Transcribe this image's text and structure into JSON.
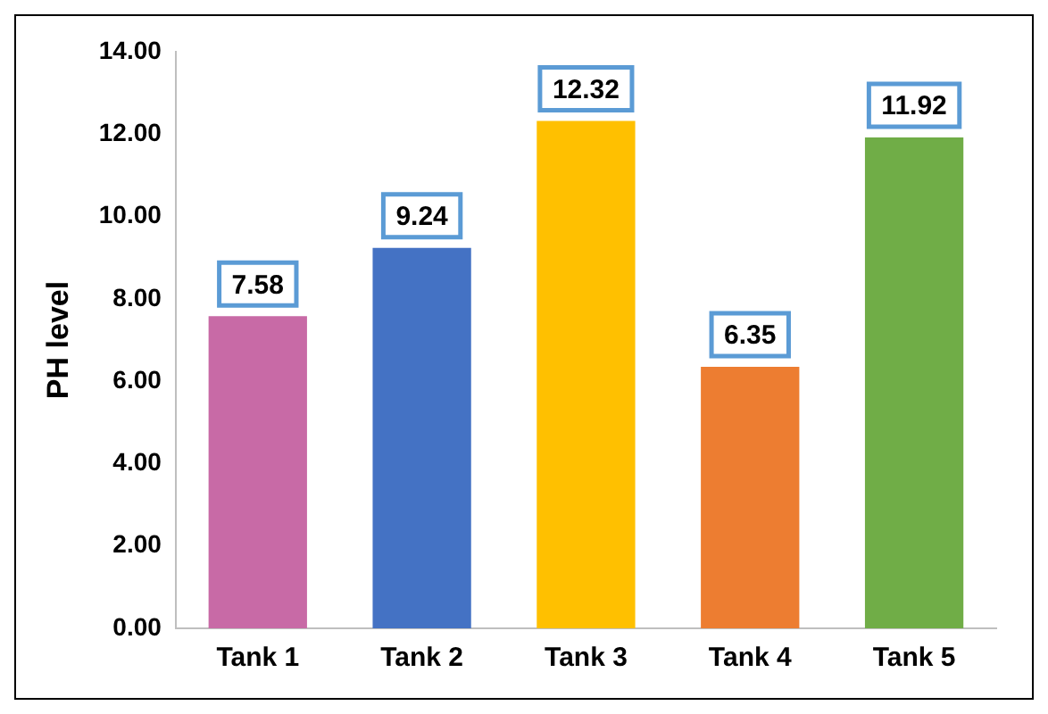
{
  "chart_data": {
    "type": "bar",
    "ylabel": "PH level",
    "categories": [
      "Tank 1",
      "Tank 2",
      "Tank 3",
      "Tank 4",
      "Tank 5"
    ],
    "values": [
      7.58,
      9.24,
      12.32,
      6.35,
      11.92
    ],
    "colors": [
      "#c86aa6",
      "#4472c4",
      "#ffc000",
      "#ed7d31",
      "#70ad47"
    ],
    "ylim": [
      0,
      14
    ],
    "yticks": [
      {
        "value": 0,
        "label": "0.00"
      },
      {
        "value": 2,
        "label": "2.00"
      },
      {
        "value": 4,
        "label": "4.00"
      },
      {
        "value": 6,
        "label": "6.00"
      },
      {
        "value": 8,
        "label": "8.00"
      },
      {
        "value": 10,
        "label": "10.00"
      },
      {
        "value": 12,
        "label": "12.00"
      },
      {
        "value": 14,
        "label": "14.00"
      }
    ],
    "grid": false,
    "legend": false,
    "data_labels": true
  }
}
